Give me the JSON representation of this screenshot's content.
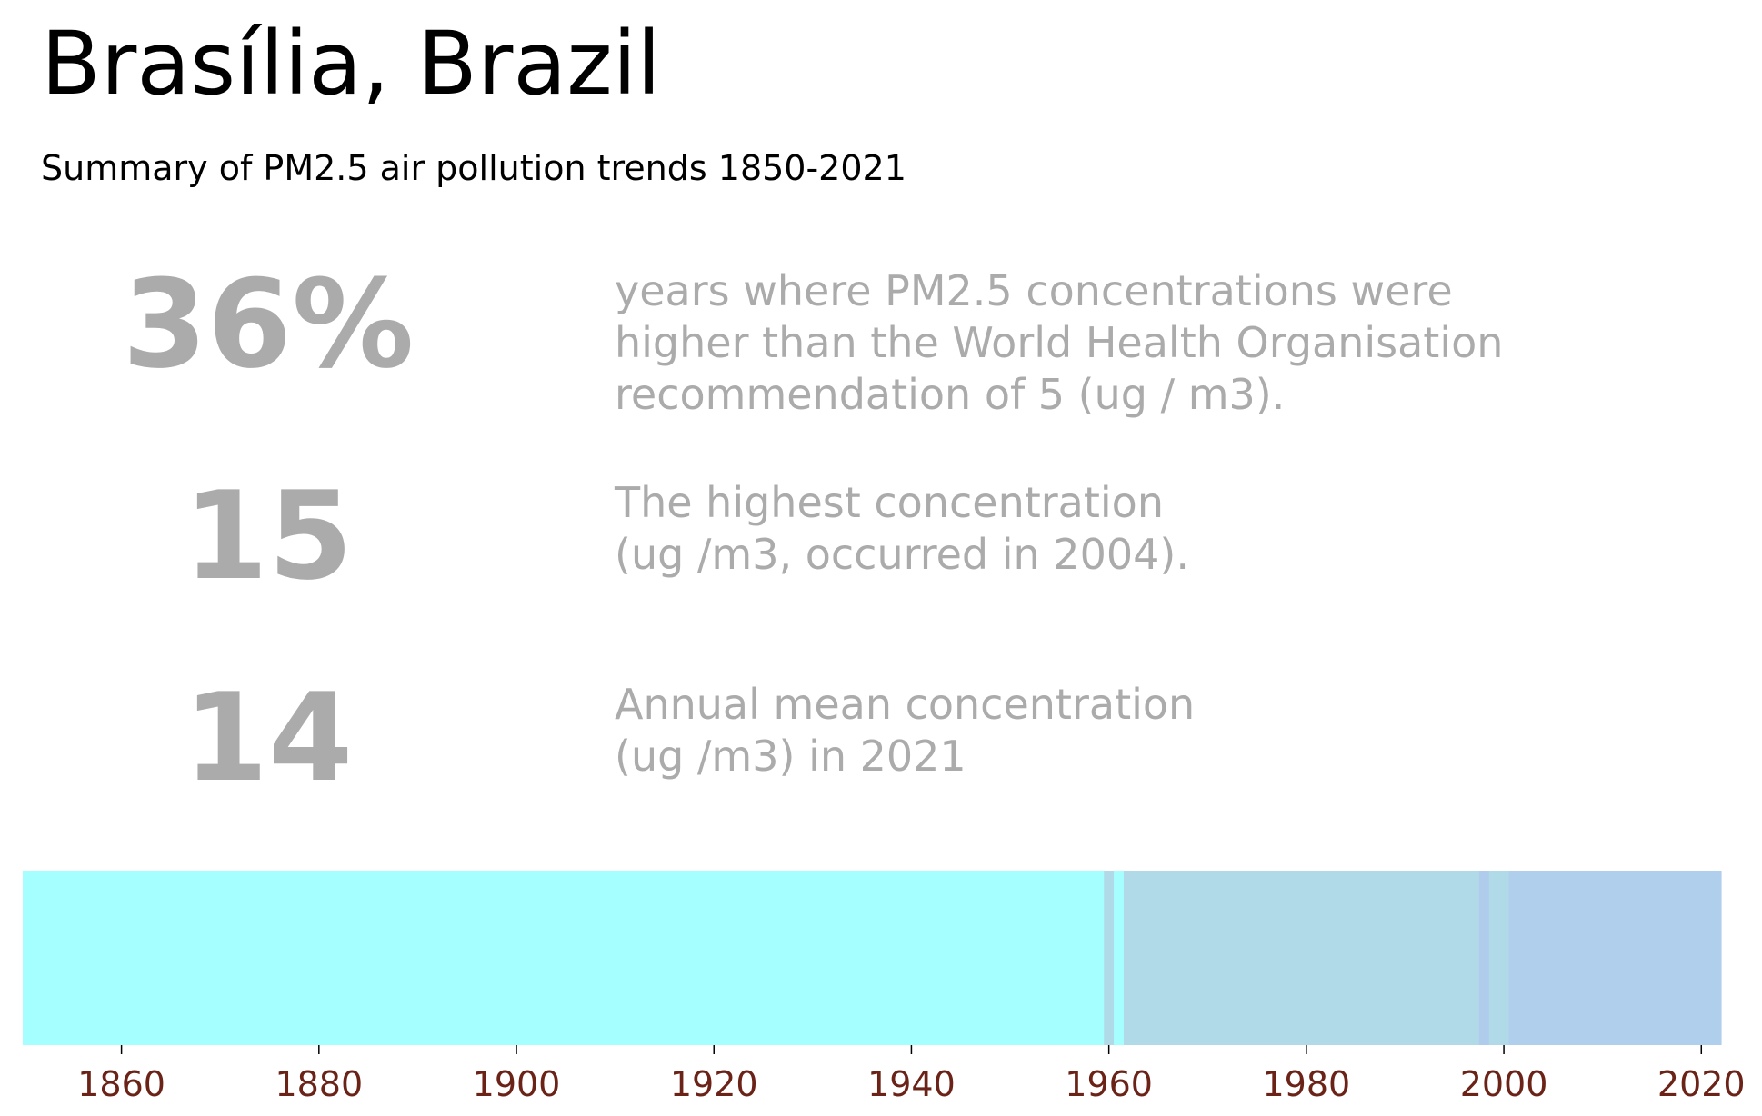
{
  "header": {
    "title": "Brasília, Brazil",
    "subtitle": "Summary of PM2.5 air pollution trends 1850-2021"
  },
  "stats": [
    {
      "value": "36%",
      "description": "years where PM2.5 concentrations were\nhigher than the World Health Organisation\nrecommendation of 5 (ug / m3)."
    },
    {
      "value": "15",
      "description": "The highest concentration\n(ug /m3, occurred in 2004)."
    },
    {
      "value": "14",
      "description": "Annual mean concentration\n(ug /m3) in 2021"
    }
  ],
  "colors": {
    "stat_text": "#ababab",
    "tick_label": "#6b2318",
    "band_low": "#a6ffff",
    "band_mid": "#b0dae8",
    "band_high": "#b0cfec",
    "band_mid_alt": "#b0ccec"
  },
  "chart_data": {
    "type": "heatmap",
    "title": "",
    "xlabel": "",
    "ylabel": "",
    "xlim": [
      1850,
      2022
    ],
    "grid": false,
    "x_ticks": [
      1860,
      1880,
      1900,
      1920,
      1940,
      1960,
      1980,
      2000,
      2020
    ],
    "segments": [
      {
        "start": 1850,
        "end": 1959.5,
        "color": "#a6ffff"
      },
      {
        "start": 1959.5,
        "end": 1960.5,
        "color": "#b0dae8"
      },
      {
        "start": 1960.5,
        "end": 1961.5,
        "color": "#a6ffff"
      },
      {
        "start": 1961.5,
        "end": 1997.5,
        "color": "#b0dae8"
      },
      {
        "start": 1997.5,
        "end": 1998.5,
        "color": "#b0ccec"
      },
      {
        "start": 1998.5,
        "end": 2000.5,
        "color": "#b0dae8"
      },
      {
        "start": 2000.5,
        "end": 2022,
        "color": "#b0cfec"
      }
    ]
  }
}
